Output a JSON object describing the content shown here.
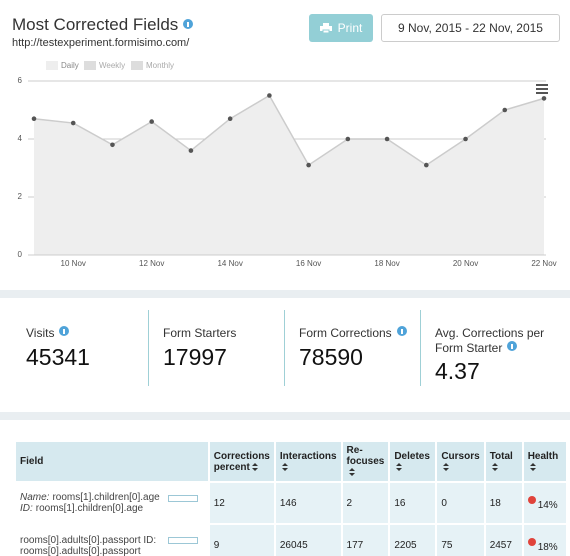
{
  "header": {
    "title": "Most Corrected Fields",
    "url": "http://testexperiment.formisimo.com/",
    "print": "Print",
    "date_range": "9 Nov, 2015 - 22 Nov, 2015"
  },
  "chart_data": {
    "type": "area",
    "legend": [
      "Daily",
      "Weekly",
      "Monthly"
    ],
    "categories": [
      null,
      "10 Nov",
      null,
      "12 Nov",
      null,
      "14 Nov",
      null,
      "16 Nov",
      null,
      "18 Nov",
      null,
      "20 Nov",
      null,
      "22 Nov"
    ],
    "values": [
      4.7,
      4.55,
      3.8,
      4.6,
      3.6,
      4.7,
      5.5,
      3.1,
      4.0,
      4.0,
      3.1,
      4.0,
      5.0,
      5.4
    ],
    "color": "#cccccc",
    "fill": "#eeeeee",
    "point_color": "#555555",
    "ylim": [
      0,
      6
    ],
    "yticks": [
      0,
      2,
      4,
      6
    ],
    "grid": true
  },
  "stats": [
    {
      "label": "Visits",
      "value": 45341,
      "info": true
    },
    {
      "label": "Form Starters",
      "value": 17997,
      "info": false
    },
    {
      "label": "Form Corrections",
      "value": 78590,
      "info": true
    },
    {
      "label": "Avg. Corrections per Form Starter",
      "value": 4.37,
      "info": true
    }
  ],
  "table": {
    "columns": [
      "Field",
      "Corrections percent",
      "Interactions",
      "Re-focuses",
      "Deletes",
      "Cursors",
      "Total",
      "Health"
    ],
    "rows": [
      {
        "field": {
          "name_label": "Name:",
          "name": "rooms[1].children[0].age",
          "id_label": "ID:",
          "id": "rooms[1].children[0].age"
        },
        "cells": [
          12,
          146,
          2,
          16,
          0,
          18,
          "14%"
        ]
      },
      {
        "field": {
          "name": "rooms[0].adults[0].passport",
          "id_label": "ID:",
          "id": "rooms[0].adults[0].passport"
        },
        "cells": [
          9,
          26045,
          177,
          2205,
          75,
          2457,
          "18%"
        ]
      }
    ]
  }
}
